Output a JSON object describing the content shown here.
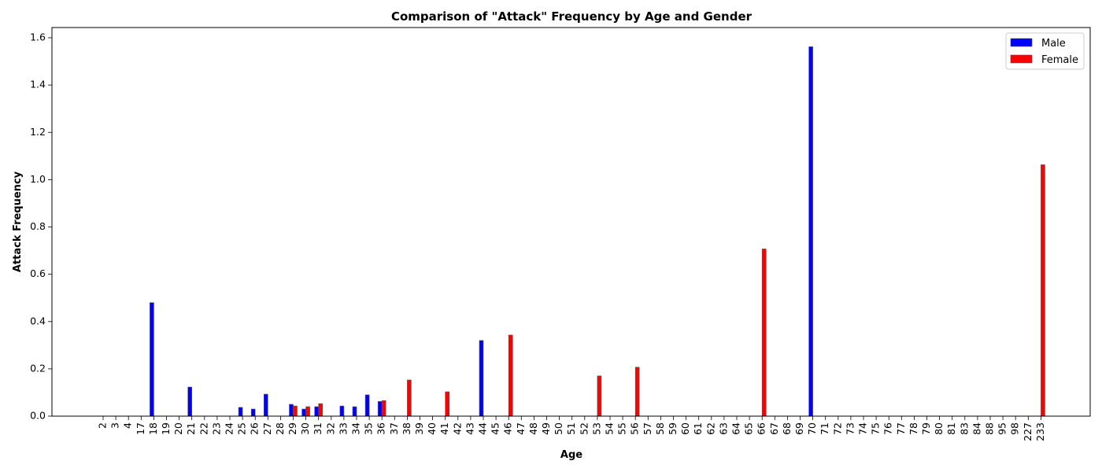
{
  "chart_data": {
    "type": "bar",
    "title": "Comparison of \"Attack\" Frequency by Age and Gender",
    "xlabel": "Age",
    "ylabel": "Attack Frequency",
    "ylim": [
      0,
      1.6
    ],
    "yticks": [
      "0.0",
      "0.2",
      "0.4",
      "0.6",
      "0.8",
      "1.0",
      "1.2",
      "1.4",
      "1.6"
    ],
    "categories": [
      "2",
      "3",
      "4",
      "17",
      "18",
      "19",
      "20",
      "21",
      "22",
      "23",
      "24",
      "25",
      "26",
      "27",
      "28",
      "29",
      "30",
      "31",
      "32",
      "33",
      "34",
      "35",
      "36",
      "37",
      "38",
      "39",
      "40",
      "41",
      "42",
      "43",
      "44",
      "45",
      "46",
      "47",
      "48",
      "49",
      "50",
      "51",
      "52",
      "53",
      "54",
      "55",
      "56",
      "57",
      "58",
      "59",
      "60",
      "61",
      "62",
      "63",
      "64",
      "65",
      "66",
      "67",
      "68",
      "69",
      "70",
      "71",
      "72",
      "73",
      "74",
      "75",
      "76",
      "77",
      "78",
      "79",
      "80",
      "81",
      "83",
      "84",
      "88",
      "95",
      "98",
      "227",
      "233"
    ],
    "series": [
      {
        "name": "Male",
        "color": "#0000ff",
        "values": [
          0,
          0,
          0,
          0,
          0.48,
          0,
          0,
          0.123,
          0,
          0,
          0,
          0.037,
          0.03,
          0.093,
          0,
          0.05,
          0.03,
          0.04,
          0,
          0.043,
          0.04,
          0.09,
          0.062,
          0,
          0,
          0,
          0,
          0,
          0,
          0,
          0.32,
          0,
          0,
          0,
          0,
          0,
          0,
          0,
          0,
          0,
          0,
          0,
          0,
          0,
          0,
          0,
          0,
          0,
          0,
          0,
          0,
          0,
          0,
          0,
          0,
          0,
          1.562,
          0,
          0,
          0,
          0,
          0,
          0,
          0,
          0,
          0,
          0,
          0,
          0,
          0,
          0,
          0,
          0,
          0,
          0
        ]
      },
      {
        "name": "Female",
        "color": "#ff0000",
        "values": [
          0,
          0,
          0,
          0,
          0,
          0,
          0,
          0,
          0,
          0,
          0,
          0,
          0,
          0,
          0,
          0.043,
          0.04,
          0.053,
          0,
          0,
          0,
          0,
          0.066,
          0,
          0.153,
          0,
          0,
          0.103,
          0,
          0,
          0,
          0,
          0.343,
          0,
          0,
          0,
          0,
          0,
          0,
          0.17,
          0,
          0,
          0.207,
          0,
          0,
          0,
          0,
          0,
          0,
          0,
          0,
          0,
          0.707,
          0,
          0,
          0,
          0,
          0,
          0,
          0,
          0,
          0,
          0,
          0,
          0,
          0,
          0,
          0,
          0,
          0,
          0,
          0,
          0,
          0,
          1.063
        ]
      }
    ],
    "legend": {
      "position": "top-right"
    },
    "grid": false
  }
}
